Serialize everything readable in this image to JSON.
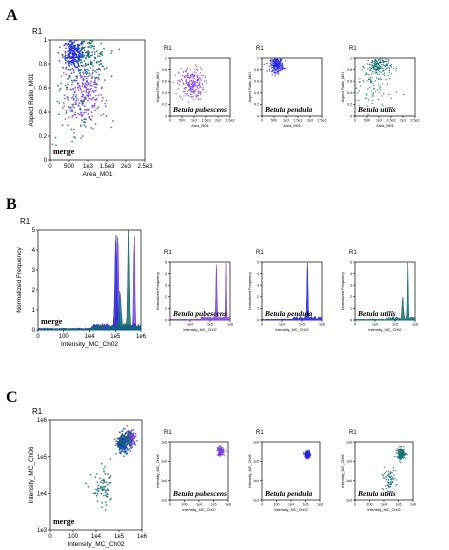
{
  "panels": {
    "A": {
      "letter": "A",
      "region": "R1",
      "xlabel": "Area_M01",
      "ylabel": "Aspect Ratio_M01",
      "xticks": [
        "0",
        "500",
        "1e3",
        "1.5e3",
        "2e3",
        "2.5e3"
      ],
      "yticks": [
        "0",
        "0.2",
        "0.4",
        "0.6",
        "0.8",
        "1"
      ],
      "merge_label": "merge",
      "small_xticks": [
        "0",
        "500",
        "1e3",
        "1.5e3",
        "2e3",
        "2.5e3"
      ],
      "small_yticks": [
        "0",
        "0.2",
        "0.4",
        "0.6",
        "0.8",
        "1"
      ]
    },
    "B": {
      "letter": "B",
      "region": "R1",
      "xlabel": "Intensity_MC_Ch02",
      "ylabel": "Normalized Frequency",
      "xticks": [
        "0",
        "100",
        "1e4",
        "1e5",
        "1e6"
      ],
      "yticks": [
        "0",
        "1",
        "2",
        "3",
        "4",
        "5"
      ],
      "merge_label": "merge",
      "small_xticks": [
        "0",
        "1e4",
        "1e5",
        "1e6"
      ],
      "small_yticks": [
        "0",
        "1",
        "2",
        "3",
        "4",
        "5"
      ]
    },
    "C": {
      "letter": "C",
      "region": "R1",
      "xlabel": "Intensity_MC_Ch02",
      "ylabel": "Intensity_MC_Ch06",
      "xticks": [
        "0",
        "100",
        "1e4",
        "1e5",
        "1e6"
      ],
      "yticks": [
        "1e3",
        "1e4",
        "1e5",
        "1e6"
      ],
      "merge_label": "merge",
      "small_xticks": [
        "0",
        "100",
        "1e4",
        "1e5",
        "1e6"
      ],
      "small_yticks": [
        "1e3",
        "1e4",
        "1e5",
        "1e6"
      ]
    }
  },
  "species": [
    {
      "key": "pubescens",
      "label": "Betula pubescens",
      "color": "#7b3fe4"
    },
    {
      "key": "pendula",
      "label": "Betula pendula",
      "color": "#2323e6"
    },
    {
      "key": "utilis",
      "label": "Betula utilis",
      "color": "#0f6b6b"
    }
  ],
  "chart_data": [
    {
      "panel": "A",
      "type": "scatter",
      "title": "",
      "xlabel": "Area_M01",
      "ylabel": "Aspect Ratio_M01",
      "xlim": [
        0,
        2500
      ],
      "ylim": [
        0,
        1
      ],
      "series": [
        {
          "name": "Betula pubescens",
          "clusters": [
            {
              "cx": 900,
              "cy": 0.55,
              "sx": 260,
              "sy": 0.14,
              "n": 220
            }
          ]
        },
        {
          "name": "Betula pendula",
          "clusters": [
            {
              "cx": 620,
              "cy": 0.88,
              "sx": 140,
              "sy": 0.06,
              "n": 220
            }
          ]
        },
        {
          "name": "Betula utilis",
          "clusters": [
            {
              "cx": 1000,
              "cy": 0.85,
              "sx": 260,
              "sy": 0.09,
              "n": 170
            },
            {
              "cx": 700,
              "cy": 0.45,
              "sx": 450,
              "sy": 0.2,
              "n": 70
            }
          ]
        }
      ]
    },
    {
      "panel": "B",
      "type": "area",
      "title": "",
      "xlabel": "Intensity_MC_Ch02",
      "ylabel": "Normalized Frequency",
      "xscale": "log",
      "ylim": [
        0,
        5
      ],
      "series": [
        {
          "name": "Betula pubescens",
          "peaks": [
            {
              "x": 1100000,
              "h": 4.95,
              "w": 0.03
            },
            {
              "x": 150000,
              "h": 4.6,
              "w": 0.05
            }
          ]
        },
        {
          "name": "Betula pendula",
          "peaks": [
            {
              "x": 120000,
              "h": 4.8,
              "w": 0.05
            }
          ]
        },
        {
          "name": "Betula utilis",
          "peaks": [
            {
              "x": 560000,
              "h": 4.9,
              "w": 0.035
            },
            {
              "x": 200000,
              "h": 1.8,
              "w": 0.06
            }
          ]
        }
      ]
    },
    {
      "panel": "C",
      "type": "scatter",
      "title": "",
      "xlabel": "Intensity_MC_Ch02",
      "ylabel": "Intensity_MC_Ch06",
      "xscale": "log",
      "yscale": "log",
      "xlim": [
        10,
        3000000
      ],
      "ylim": [
        300,
        3000000
      ],
      "series": [
        {
          "name": "Betula pubescens",
          "clusters": [
            {
              "cx": 600000,
              "cy": 700000,
              "sx": 0.15,
              "sy": 0.15,
              "n": 160
            }
          ]
        },
        {
          "name": "Betula pendula",
          "clusters": [
            {
              "cx": 200000,
              "cy": 400000,
              "sx": 0.12,
              "sy": 0.12,
              "n": 180
            }
          ]
        },
        {
          "name": "Betula utilis",
          "clusters": [
            {
              "cx": 250000,
              "cy": 450000,
              "sx": 0.22,
              "sy": 0.2,
              "n": 130
            },
            {
              "cx": 15000,
              "cy": 8000,
              "sx": 0.35,
              "sy": 0.35,
              "n": 70
            }
          ]
        }
      ]
    }
  ]
}
